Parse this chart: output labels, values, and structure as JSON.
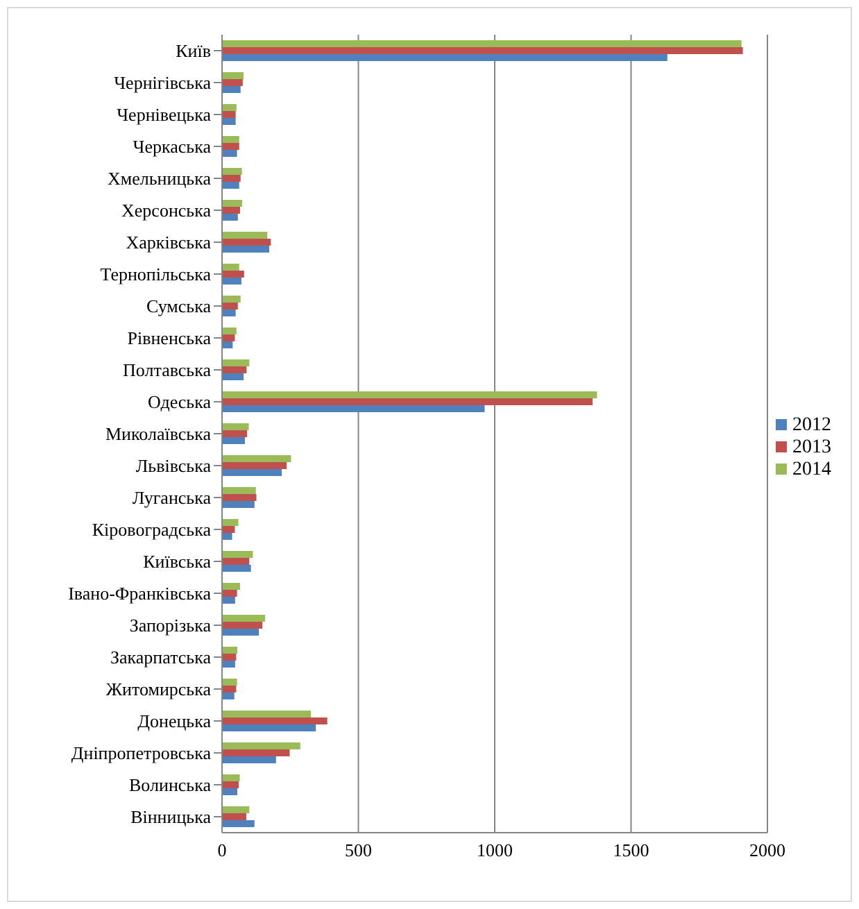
{
  "chart_data": {
    "type": "bar",
    "orientation": "horizontal",
    "categories": [
      "Київ",
      "Чернігівська",
      "Чернівецька",
      "Черкаська",
      "Хмельницька",
      "Херсонська",
      "Харківська",
      "Тернопільська",
      "Сумська",
      "Рівненська",
      "Полтавська",
      "Одеська",
      "Миколаївська",
      "Львівська",
      "Луганська",
      "Кіровоградська",
      "Київська",
      "Івано-Франківська",
      "Запорізька",
      "Закарпатська",
      "Житомирська",
      "Донецька",
      "Дніпропетровська",
      "Волинська",
      "Вінницька"
    ],
    "series": [
      {
        "name": "2014",
        "color": "#9bbb59",
        "values": [
          1905,
          79,
          53,
          63,
          73,
          74,
          166,
          63,
          68,
          53,
          100,
          1375,
          98,
          253,
          124,
          60,
          113,
          66,
          158,
          56,
          55,
          326,
          287,
          65,
          100
        ]
      },
      {
        "name": "2013",
        "color": "#c0504d",
        "values": [
          1910,
          76,
          50,
          63,
          68,
          66,
          179,
          81,
          58,
          47,
          90,
          1359,
          92,
          237,
          126,
          47,
          100,
          55,
          148,
          52,
          52,
          386,
          248,
          61,
          89
        ]
      },
      {
        "name": "2012",
        "color": "#4f81bd",
        "values": [
          1633,
          68,
          50,
          55,
          63,
          58,
          173,
          71,
          50,
          39,
          79,
          963,
          84,
          219,
          119,
          37,
          106,
          48,
          135,
          48,
          45,
          344,
          198,
          56,
          119
        ]
      }
    ],
    "xlim": [
      0,
      2000
    ],
    "xticks": [
      0,
      500,
      1000,
      1500,
      2000
    ],
    "grid": "x",
    "legend": "right"
  }
}
